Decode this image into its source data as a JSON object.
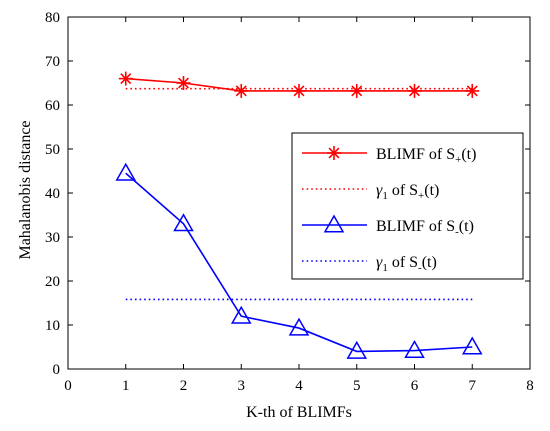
{
  "chart_data": {
    "type": "line",
    "title": "",
    "xlabel": "K-th of BLIMFs",
    "ylabel": "Mahalanobis distance",
    "xlim": [
      0,
      8
    ],
    "ylim": [
      0,
      80
    ],
    "xticks": [
      0,
      1,
      2,
      3,
      4,
      5,
      6,
      7,
      8
    ],
    "yticks": [
      0,
      10,
      20,
      30,
      40,
      50,
      60,
      70,
      80
    ],
    "grid": false,
    "legend_position": "right",
    "series": [
      {
        "name": "BLIMF of S+(t)",
        "legend": {
          "pre": "BLIMF of S",
          "sub": "+",
          "post": "(t)"
        },
        "color": "#ff0000",
        "line_style": "solid",
        "marker": "asterisk",
        "x": [
          1,
          2,
          3,
          4,
          5,
          6,
          7
        ],
        "y": [
          66,
          65,
          63.2,
          63.2,
          63.2,
          63.2,
          63.2
        ]
      },
      {
        "name": "γ1 of S+(t)",
        "legend": {
          "greek": "γ",
          "greek_sub": "1",
          "pre": " of S",
          "sub": "+",
          "post": "(t)"
        },
        "color": "#ff0000",
        "line_style": "dotted",
        "marker": "none",
        "x": [
          1,
          7
        ],
        "y": [
          63.7,
          63.7
        ]
      },
      {
        "name": "BLIMF of S-(t)",
        "legend": {
          "pre": "BLIMF of S",
          "sub": "-",
          "post": "(t)"
        },
        "color": "#0000ff",
        "line_style": "solid",
        "marker": "triangle",
        "x": [
          1,
          2,
          3,
          4,
          5,
          6,
          7
        ],
        "y": [
          44.5,
          33,
          12,
          9.3,
          4,
          4.2,
          5
        ]
      },
      {
        "name": "γ1 of S-(t)",
        "legend": {
          "greek": "γ",
          "greek_sub": "1",
          "pre": " of S",
          "sub": "-",
          "post": "(t)"
        },
        "color": "#0000ff",
        "line_style": "dotted",
        "marker": "none",
        "x": [
          1,
          7
        ],
        "y": [
          15.8,
          15.8
        ]
      }
    ]
  }
}
